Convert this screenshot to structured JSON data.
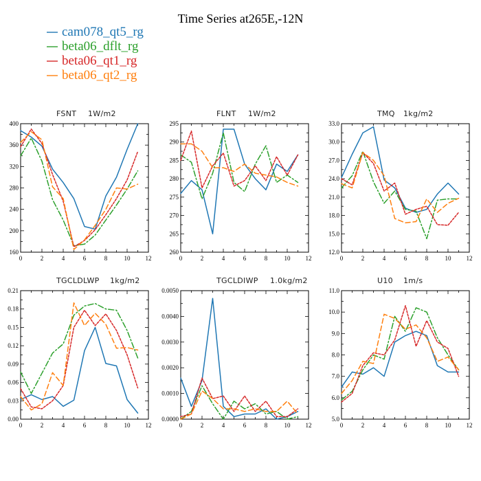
{
  "title": "Time Series at265E,-12N",
  "colors": {
    "cam078_qt5_rg": "#1f77b4",
    "beta06_dflt_rg": "#2ca02c",
    "beta06_qt1_rg": "#d62728",
    "beta06_qt2_rg": "#ff7f0e"
  },
  "legend": [
    {
      "name": "cam078_qt5_rg",
      "color": "#1f77b4",
      "dash": "none"
    },
    {
      "name": "beta06_dflt_rg",
      "color": "#2ca02c",
      "dash": "8,3,2,3"
    },
    {
      "name": "beta06_qt1_rg",
      "color": "#d62728",
      "dash": "3,2"
    },
    {
      "name": "beta06_qt2_rg",
      "color": "#ff7f0e",
      "dash": "7,4"
    }
  ],
  "chart_data": [
    {
      "type": "line",
      "title": "FSNT",
      "units": "1W/m2",
      "x": [
        0,
        1,
        2,
        3,
        4,
        5,
        6,
        7,
        8,
        9,
        10,
        11
      ],
      "xlim": [
        0,
        12
      ],
      "xticks": [
        "0",
        "2",
        "4",
        "6",
        "8",
        "10",
        "12"
      ],
      "ylim": [
        160,
        400
      ],
      "yticks": [
        "160",
        "200",
        "240",
        "280",
        "320",
        "360",
        "400"
      ],
      "series": [
        {
          "name": "cam078_qt5_rg",
          "values": [
            387,
            375,
            358,
            315,
            290,
            260,
            208,
            203,
            265,
            300,
            352,
            400
          ]
        },
        {
          "name": "beta06_dflt_rg",
          "values": [
            340,
            373,
            330,
            258,
            220,
            172,
            175,
            192,
            220,
            248,
            278,
            312
          ]
        },
        {
          "name": "beta06_qt1_rg",
          "values": [
            357,
            390,
            363,
            305,
            255,
            170,
            182,
            202,
            230,
            260,
            295,
            348
          ]
        },
        {
          "name": "beta06_qt2_rg",
          "values": [
            365,
            385,
            370,
            282,
            260,
            165,
            183,
            210,
            240,
            280,
            278,
            287
          ]
        }
      ]
    },
    {
      "type": "line",
      "title": "FLNT",
      "units": "1W/m2",
      "x": [
        0,
        1,
        2,
        3,
        4,
        5,
        6,
        7,
        8,
        9,
        10,
        11
      ],
      "xlim": [
        0,
        12
      ],
      "xticks": [
        "0",
        "2",
        "4",
        "6",
        "8",
        "10",
        "12"
      ],
      "ylim": [
        260,
        295
      ],
      "yticks": [
        "260",
        "265",
        "270",
        "275",
        "280",
        "285",
        "290",
        "295"
      ],
      "series": [
        {
          "name": "cam078_qt5_rg",
          "values": [
            276,
            279.5,
            277,
            265,
            293.5,
            293.5,
            284,
            280,
            277,
            284,
            282,
            286.5
          ]
        },
        {
          "name": "beta06_dflt_rg",
          "values": [
            286.5,
            284.5,
            274.5,
            281.5,
            292.5,
            279,
            276.5,
            284,
            289,
            279,
            281,
            279
          ]
        },
        {
          "name": "beta06_qt1_rg",
          "values": [
            285,
            293,
            277.5,
            283.5,
            287,
            278,
            279.5,
            283.5,
            279.5,
            286,
            281,
            286.5
          ]
        },
        {
          "name": "beta06_qt2_rg",
          "values": [
            289.5,
            289.5,
            287.5,
            283,
            283,
            282,
            284,
            281.5,
            281,
            280.5,
            279,
            278
          ]
        }
      ]
    },
    {
      "type": "line",
      "title": "TMQ",
      "units": "1kg/m2",
      "x": [
        0,
        1,
        2,
        3,
        4,
        5,
        6,
        7,
        8,
        9,
        10,
        11
      ],
      "xlim": [
        0,
        12
      ],
      "xticks": [
        "0",
        "2",
        "4",
        "6",
        "8",
        "10",
        "12"
      ],
      "ylim": [
        12.0,
        33.0
      ],
      "yticks": [
        "12.0",
        "15.0",
        "18.0",
        "21.0",
        "24.0",
        "27.0",
        "30.0",
        "33.0"
      ],
      "series": [
        {
          "name": "cam078_qt5_rg",
          "values": [
            24.2,
            28.0,
            31.5,
            32.5,
            23.8,
            22.5,
            19.2,
            18.5,
            19.0,
            21.5,
            23.3,
            21.5
          ]
        },
        {
          "name": "beta06_dflt_rg",
          "values": [
            22.5,
            24.5,
            28.5,
            23.5,
            20.0,
            22.0,
            19.0,
            18.7,
            14.2,
            20.5,
            20.7,
            20.7
          ]
        },
        {
          "name": "beta06_qt1_rg",
          "values": [
            24.0,
            23.0,
            28.3,
            26.5,
            22.0,
            23.3,
            18.2,
            19.0,
            19.5,
            16.5,
            16.4,
            18.5
          ]
        },
        {
          "name": "beta06_qt2_rg",
          "values": [
            23.2,
            22.5,
            28.3,
            27.0,
            24.5,
            17.5,
            16.8,
            17.0,
            20.7,
            18.5,
            20.0,
            20.8
          ]
        }
      ]
    },
    {
      "type": "line",
      "title": "TGCLDLWP",
      "units": "1kg/m2",
      "x": [
        0,
        1,
        2,
        3,
        4,
        5,
        6,
        7,
        8,
        9,
        10,
        11
      ],
      "xlim": [
        0,
        12
      ],
      "xticks": [
        "0",
        "2",
        "4",
        "6",
        "8",
        "10",
        "12"
      ],
      "ylim": [
        0.0,
        0.21
      ],
      "yticks": [
        "0.00",
        "0.03",
        "0.06",
        "0.09",
        "0.12",
        "0.15",
        "0.18",
        "0.21"
      ],
      "series": [
        {
          "name": "cam078_qt5_rg",
          "values": [
            0.032,
            0.04,
            0.032,
            0.037,
            0.021,
            0.031,
            0.112,
            0.15,
            0.091,
            0.087,
            0.032,
            0.01
          ]
        },
        {
          "name": "beta06_dflt_rg",
          "values": [
            0.077,
            0.042,
            0.075,
            0.108,
            0.123,
            0.17,
            0.185,
            0.189,
            0.18,
            0.178,
            0.145,
            0.1
          ]
        },
        {
          "name": "beta06_qt1_rg",
          "values": [
            0.05,
            0.02,
            0.017,
            0.03,
            0.055,
            0.15,
            0.178,
            0.153,
            0.172,
            0.145,
            0.105,
            0.051
          ]
        },
        {
          "name": "beta06_qt2_rg",
          "values": [
            0.037,
            0.015,
            0.025,
            0.076,
            0.055,
            0.19,
            0.153,
            0.173,
            0.155,
            0.116,
            0.117,
            0.113
          ]
        }
      ]
    },
    {
      "type": "line",
      "title": "TGCLDIWP",
      "units": "1.0kg/m2",
      "x": [
        0,
        1,
        2,
        3,
        4,
        5,
        6,
        7,
        8,
        9,
        10,
        11
      ],
      "xlim": [
        0,
        12
      ],
      "xticks": [
        "0",
        "2",
        "4",
        "6",
        "8",
        "10",
        "12"
      ],
      "ylim": [
        0.0,
        0.005
      ],
      "yticks": [
        "0.0000",
        "0.0010",
        "0.0020",
        "0.0030",
        "0.0040",
        "0.0050"
      ],
      "series": [
        {
          "name": "cam078_qt5_rg",
          "values": [
            0.0016,
            0.0005,
            0.0015,
            0.0047,
            0.0005,
            0.0001,
            0.0002,
            0.0002,
            0.0004,
            0.0,
            0.0001,
            0.0003
          ]
        },
        {
          "name": "beta06_dflt_rg",
          "values": [
            0.0,
            0.0003,
            0.0013,
            0.0006,
            0.0,
            0.0007,
            0.0004,
            0.0006,
            0.0002,
            0.0003,
            0.0,
            0.0001
          ]
        },
        {
          "name": "beta06_qt1_rg",
          "values": [
            0.0001,
            0.0002,
            0.0016,
            0.0008,
            0.0009,
            0.0003,
            0.0009,
            0.0003,
            0.0007,
            0.0001,
            0.0001,
            0.0004
          ]
        },
        {
          "name": "beta06_qt2_rg",
          "values": [
            0.0,
            0.0002,
            0.0011,
            0.0008,
            0.0004,
            0.0004,
            0.0003,
            0.0004,
            0.0003,
            0.0003,
            0.0007,
            0.0002
          ]
        }
      ]
    },
    {
      "type": "line",
      "title": "U10",
      "units": "1m/s",
      "x": [
        0,
        1,
        2,
        3,
        4,
        5,
        6,
        7,
        8,
        9,
        10,
        11
      ],
      "xlim": [
        0,
        12
      ],
      "xticks": [
        "0",
        "2",
        "4",
        "6",
        "8",
        "10",
        "12"
      ],
      "ylim": [
        5.0,
        11.0
      ],
      "yticks": [
        "5.0",
        "6.0",
        "7.0",
        "8.0",
        "9.0",
        "10.0",
        "11.0"
      ],
      "series": [
        {
          "name": "cam078_qt5_rg",
          "values": [
            6.5,
            7.2,
            7.1,
            7.4,
            7.0,
            8.6,
            8.9,
            9.1,
            8.9,
            7.5,
            7.2,
            7.2
          ]
        },
        {
          "name": "beta06_dflt_rg",
          "values": [
            5.9,
            6.3,
            7.3,
            8.0,
            7.8,
            9.8,
            9.1,
            10.2,
            10.0,
            8.8,
            8.0,
            7.3
          ]
        },
        {
          "name": "beta06_qt1_rg",
          "values": [
            5.8,
            6.2,
            7.5,
            8.1,
            8.0,
            8.7,
            10.3,
            8.4,
            9.6,
            8.6,
            8.3,
            7.0
          ]
        },
        {
          "name": "beta06_qt2_rg",
          "values": [
            6.2,
            6.8,
            7.7,
            7.6,
            9.9,
            9.7,
            9.2,
            9.4,
            8.8,
            7.7,
            7.9,
            7.3
          ]
        }
      ]
    }
  ]
}
